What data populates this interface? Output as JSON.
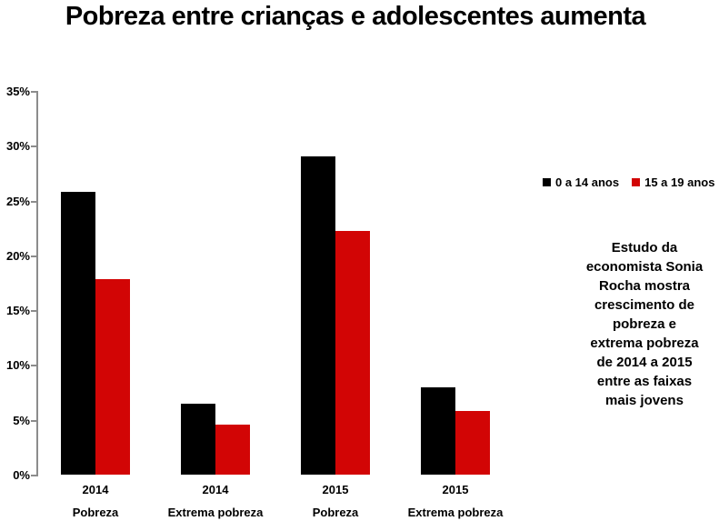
{
  "title": "Pobreza entre crianças e adolescentes aumenta",
  "legend": [
    {
      "label": "0 a 14 anos",
      "color": "#000000"
    },
    {
      "label": "15 a 19 anos",
      "color": "#D20505"
    }
  ],
  "annotation": {
    "lines": [
      "Estudo da",
      "economista Sonia",
      "Rocha mostra",
      "crescimento de",
      "pobreza e",
      "extrema pobreza",
      "de 2014 a 2015",
      "entre as faixas",
      "mais jovens"
    ]
  },
  "chart_data": {
    "type": "bar",
    "title": "Pobreza entre crianças e adolescentes aumenta",
    "categories": [
      {
        "year": "2014",
        "label": "Pobreza"
      },
      {
        "year": "2014",
        "label": "Extrema pobreza"
      },
      {
        "year": "2015",
        "label": "Pobreza"
      },
      {
        "year": "2015",
        "label": "Extrema pobreza"
      }
    ],
    "series": [
      {
        "name": "0 a 14 anos",
        "color": "#000000",
        "values": [
          25.8,
          6.5,
          29.0,
          8.0
        ]
      },
      {
        "name": "15 a 19 anos",
        "color": "#D20505",
        "values": [
          17.8,
          4.6,
          22.2,
          5.8
        ]
      }
    ],
    "ylim": [
      0,
      35
    ],
    "ytick_step": 5,
    "yticks": [
      "0%",
      "5%",
      "10%",
      "15%",
      "20%",
      "25%",
      "30%",
      "35%"
    ],
    "xlabel": "",
    "ylabel": "",
    "grid": false,
    "legend_position": "right"
  },
  "colors": {
    "background": "#FFFFFF",
    "axis": "#8C8C8C",
    "text": "#000000",
    "series1": "#000000",
    "series2": "#D20505"
  }
}
